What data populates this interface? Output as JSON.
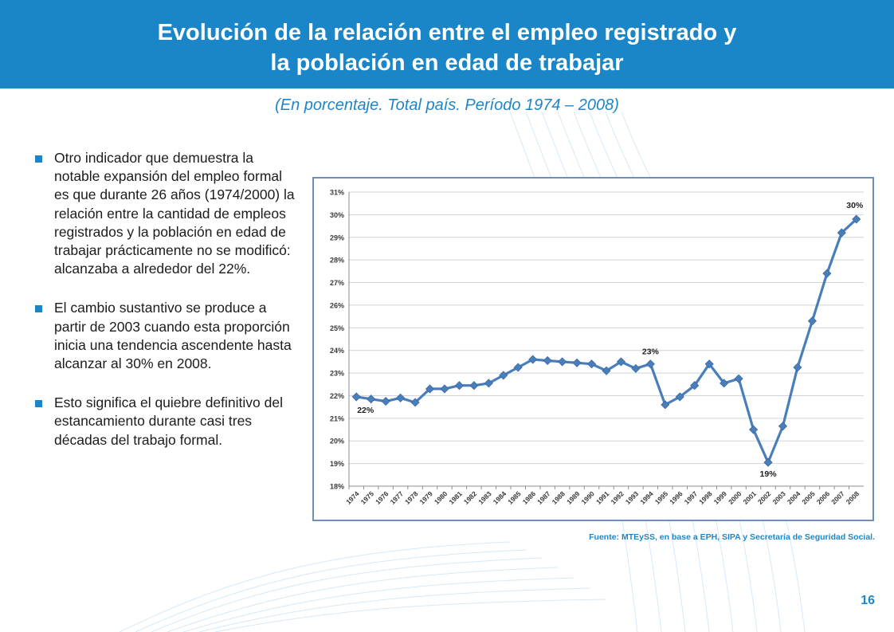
{
  "title_line1": "Evolución de la relación entre el empleo registrado y",
  "title_line2": "la población en edad de trabajar",
  "subtitle": "(En porcentaje. Total país. Período 1974 – 2008)",
  "bullets": [
    "Otro indicador que demuestra la notable expansión del empleo formal es que durante 26 años (1974/2000) la relación entre la cantidad de empleos registrados y la población en edad de trabajar prácticamente no se modificó: alcanzaba a alrededor del 22%.",
    "El cambio sustantivo se produce a partir de 2003 cuando esta proporción inicia una tendencia ascendente hasta alcanzar al 30% en 2008.",
    "Esto significa el quiebre definitivo del estancamiento durante casi tres décadas del trabajo formal."
  ],
  "source": "Fuente: MTEySS, en base a EPH, SIPA y Secretaría de Seguridad Social.",
  "page_number": "16",
  "colors": {
    "header": "#1a86c8",
    "accent": "#1f86c6",
    "line": "#4a7ebb"
  },
  "chart_data": {
    "type": "line",
    "title": "",
    "xlabel": "",
    "ylabel": "",
    "x": [
      "1974",
      "1975",
      "1976",
      "1977",
      "1978",
      "1979",
      "1980",
      "1981",
      "1982",
      "1983",
      "1984",
      "1985",
      "1986",
      "1987",
      "1988",
      "1989",
      "1990",
      "1991",
      "1992",
      "1993",
      "1994",
      "1995",
      "1996",
      "1997",
      "1998",
      "1999",
      "2000",
      "2001",
      "2002",
      "2003",
      "2004",
      "2005",
      "2006",
      "2007",
      "2008"
    ],
    "series": [
      {
        "values": [
          21.95,
          21.85,
          21.75,
          21.9,
          21.7,
          22.3,
          22.3,
          22.45,
          22.45,
          22.55,
          22.9,
          23.25,
          23.6,
          23.55,
          23.5,
          23.45,
          23.4,
          23.1,
          23.5,
          23.2,
          23.4,
          21.6,
          21.95,
          22.45,
          23.4,
          22.55,
          22.75,
          20.5,
          19.05,
          20.65,
          23.25,
          25.3,
          27.4,
          29.2,
          29.8
        ]
      }
    ],
    "yticks": [
      "18%",
      "19%",
      "20%",
      "21%",
      "22%",
      "23%",
      "24%",
      "25%",
      "26%",
      "27%",
      "28%",
      "29%",
      "30%",
      "31%"
    ],
    "ylim": [
      18,
      31
    ],
    "grid": true,
    "annotations": [
      {
        "x": "1974",
        "text": "22%"
      },
      {
        "x": "1994",
        "text": "23%"
      },
      {
        "x": "2002",
        "text": "19%"
      },
      {
        "x": "2008",
        "text": "30%"
      }
    ]
  }
}
